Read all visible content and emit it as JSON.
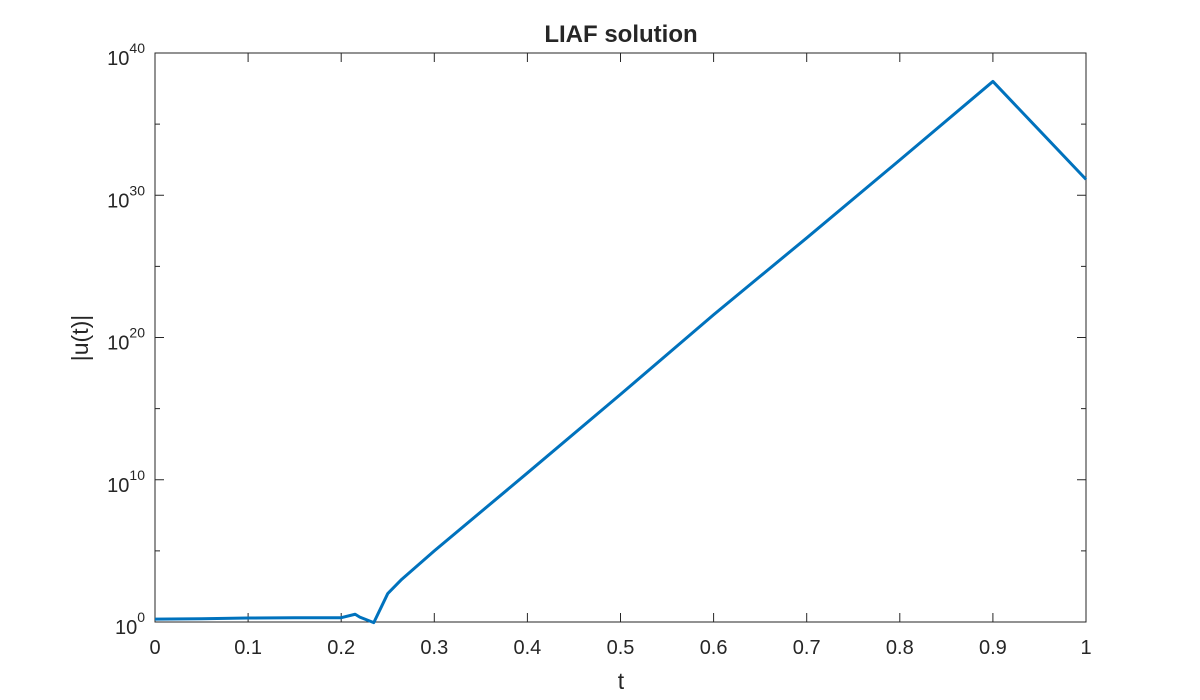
{
  "chart_data": {
    "type": "line",
    "title": "LIAF solution",
    "xlabel": "t",
    "ylabel": "|u(t)|",
    "x_scale": "linear",
    "y_scale": "log",
    "xlim": [
      0,
      1
    ],
    "ylim": [
      1,
      1e+40
    ],
    "grid": false,
    "legend": "none",
    "x_ticks": [
      0,
      0.1,
      0.2,
      0.3,
      0.4,
      0.5,
      0.6,
      0.7,
      0.8,
      0.9,
      1
    ],
    "x_tick_labels": [
      "0",
      "0.1",
      "0.2",
      "0.3",
      "0.4",
      "0.5",
      "0.6",
      "0.7",
      "0.8",
      "0.9",
      "1"
    ],
    "y_ticks": [
      1,
      10000000000.0,
      1e+20,
      1e+30,
      1e+40
    ],
    "y_tick_labels": [
      {
        "base": "10",
        "exp": "0"
      },
      {
        "base": "10",
        "exp": "10"
      },
      {
        "base": "10",
        "exp": "20"
      },
      {
        "base": "10",
        "exp": "30"
      },
      {
        "base": "10",
        "exp": "40"
      }
    ],
    "series": [
      {
        "color": "#0072BD",
        "x": [
          0,
          0.05,
          0.1,
          0.15,
          0.2,
          0.215,
          0.22,
          0.235,
          0.25,
          0.265,
          0.3,
          0.4,
          0.5,
          0.6,
          0.7,
          0.8,
          0.9,
          1.0
        ],
        "y": [
          1.6,
          1.7,
          1.9,
          2.0,
          2.0,
          3.5,
          2.2,
          0.9,
          100.0,
          1000.0,
          100000.0,
          30000000000.0,
          1e+16,
          4e+21,
          1e+27,
          3e+32,
          1e+38,
          1.3e+31
        ]
      }
    ]
  }
}
